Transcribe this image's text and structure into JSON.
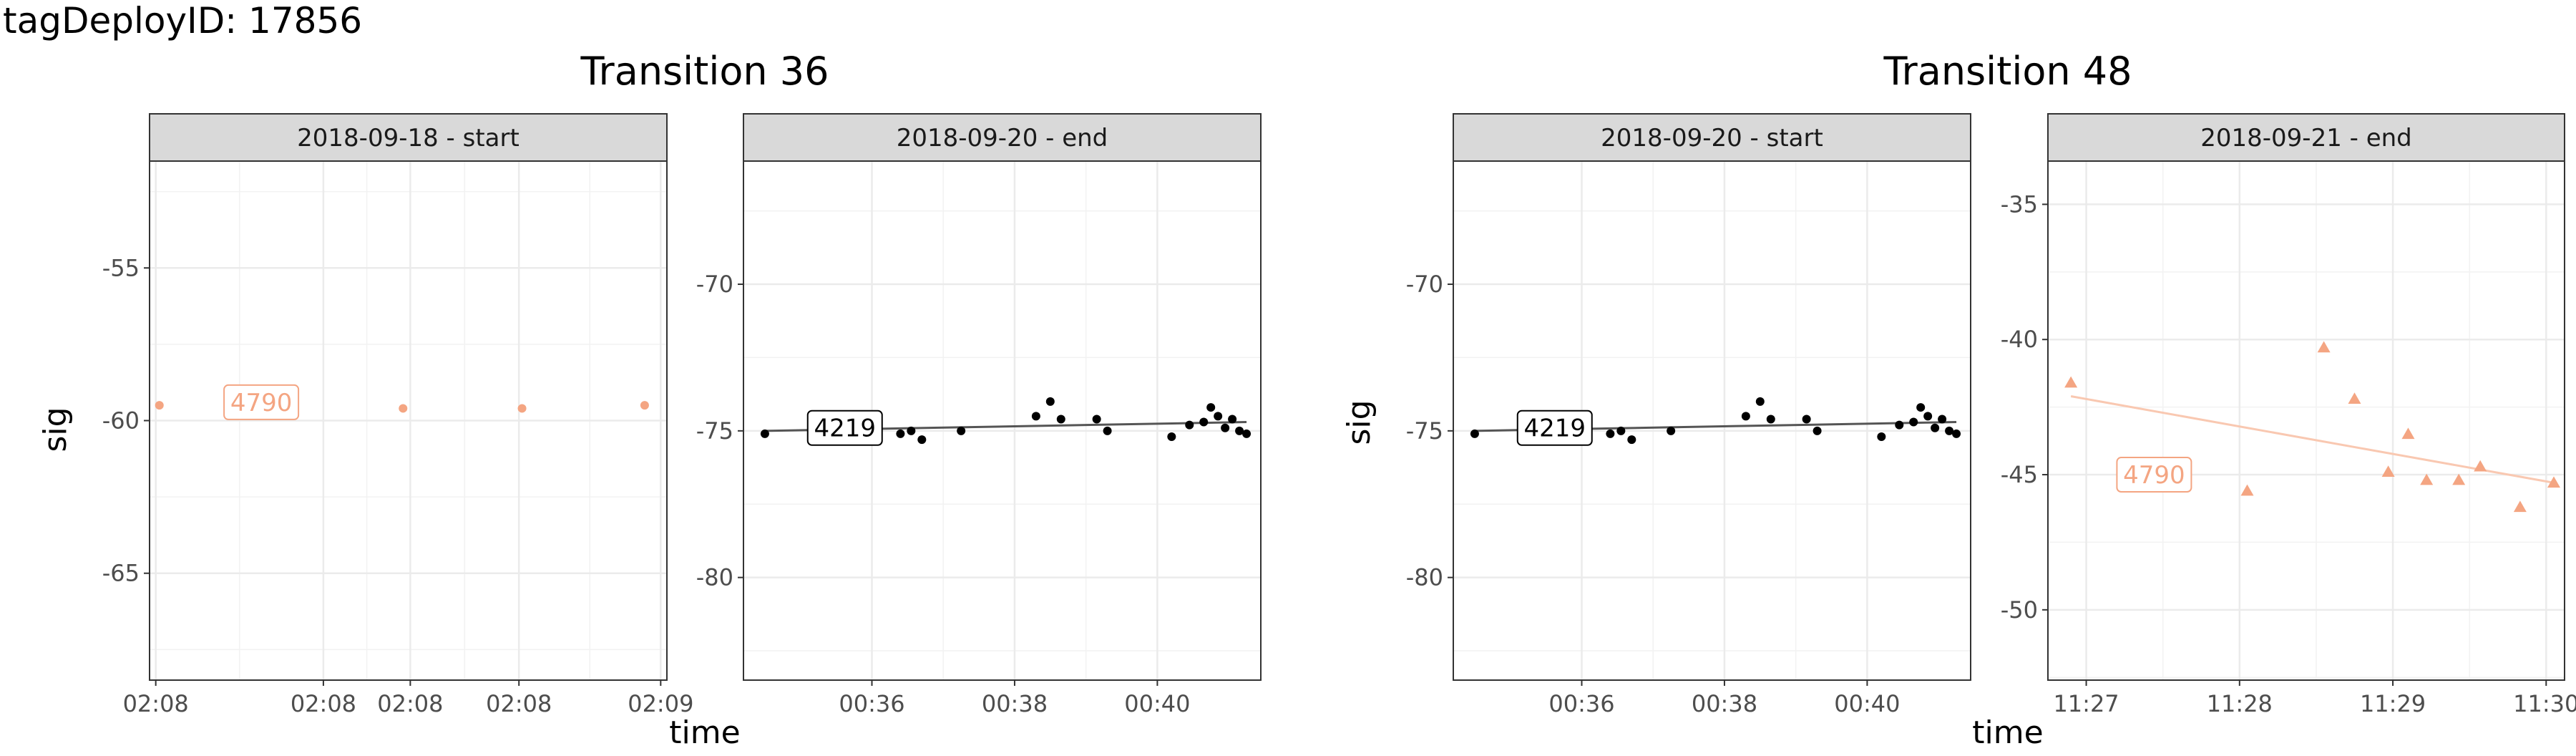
{
  "page_title": "tagDeployID: 17856",
  "transitions": [
    {
      "title": "Transition 36"
    },
    {
      "title": "Transition 48"
    }
  ],
  "colors": {
    "orange": "#F4A582",
    "black": "#000000",
    "orange_line": "#F9C8B1",
    "grid": "#EBEBEB",
    "strip_bg": "#D9D9D9",
    "border": "#333333"
  },
  "chart_data": [
    {
      "type": "scatter",
      "title": "2018-09-18 - start",
      "xlabel": "",
      "ylabel": "sig",
      "marker": "circle",
      "color": "#F4A582",
      "ylim": [
        -68.5,
        -51.5
      ],
      "yticks": [
        -55,
        -60,
        -65
      ],
      "xticks": [
        "02:08",
        "02:08",
        "02:08",
        "02:08",
        "02:09"
      ],
      "xlim": [
        0,
        100
      ],
      "xtick_pos": [
        1.2,
        33.6,
        50.4,
        71.4,
        98.8
      ],
      "grid": true,
      "x": [
        1.9,
        24.7,
        49.0,
        72.0,
        95.7
      ],
      "y": [
        -59.5,
        -59.8,
        -59.6,
        -59.6,
        -59.5
      ],
      "label": {
        "text": "4790",
        "x": 14.4,
        "y": -59.4
      },
      "fit": null
    },
    {
      "type": "scatter",
      "title": "2018-09-20 - end",
      "xlabel": "",
      "ylabel": "",
      "marker": "circle",
      "color": "#000000",
      "ylim": [
        -83.5,
        -65.8
      ],
      "yticks": [
        -70,
        -75,
        -80
      ],
      "xticks": [
        "00:36",
        "00:38",
        "00:40"
      ],
      "xlim": [
        34.2,
        41.45
      ],
      "xtick_pos": [
        36,
        38,
        40
      ],
      "grid": true,
      "x": [
        34.5,
        36.4,
        36.55,
        36.7,
        37.25,
        38.3,
        38.5,
        38.65,
        39.15,
        39.3,
        40.2,
        40.45,
        40.65,
        40.75,
        40.85,
        40.95,
        41.05,
        41.15,
        41.25
      ],
      "y": [
        -75.1,
        -75.1,
        -75.0,
        -75.3,
        -75.0,
        -74.5,
        -74.0,
        -74.6,
        -74.6,
        -75.0,
        -75.2,
        -74.8,
        -74.7,
        -74.2,
        -74.5,
        -74.9,
        -74.6,
        -75.0,
        -75.1
      ],
      "label": {
        "text": "4219",
        "x": 35.1,
        "y": -74.9
      },
      "fit": {
        "x0": 34.5,
        "y0": -75.0,
        "x1": 41.25,
        "y1": -74.7
      }
    },
    {
      "type": "scatter",
      "title": "2018-09-20 - start",
      "xlabel": "",
      "ylabel": "sig",
      "marker": "circle",
      "color": "#000000",
      "ylim": [
        -83.5,
        -65.8
      ],
      "yticks": [
        -70,
        -75,
        -80
      ],
      "xticks": [
        "00:36",
        "00:38",
        "00:40"
      ],
      "xlim": [
        34.2,
        41.45
      ],
      "xtick_pos": [
        36,
        38,
        40
      ],
      "grid": true,
      "x": [
        34.5,
        36.4,
        36.55,
        36.7,
        37.25,
        38.3,
        38.5,
        38.65,
        39.15,
        39.3,
        40.2,
        40.45,
        40.65,
        40.75,
        40.85,
        40.95,
        41.05,
        41.15,
        41.25
      ],
      "y": [
        -75.1,
        -75.1,
        -75.0,
        -75.3,
        -75.0,
        -74.5,
        -74.0,
        -74.6,
        -74.6,
        -75.0,
        -75.2,
        -74.8,
        -74.7,
        -74.2,
        -74.5,
        -74.9,
        -74.6,
        -75.0,
        -75.1
      ],
      "label": {
        "text": "4219",
        "x": 35.1,
        "y": -74.9
      },
      "fit": {
        "x0": 34.5,
        "y0": -75.0,
        "x1": 41.25,
        "y1": -74.7
      }
    },
    {
      "type": "scatter",
      "title": "2018-09-21 - end",
      "xlabel": "",
      "ylabel": "",
      "marker": "triangle",
      "color": "#F4A582",
      "ylim": [
        -52.6,
        -33.4
      ],
      "yticks": [
        -35,
        -40,
        -45,
        -50
      ],
      "xticks": [
        "11:27",
        "11:28",
        "11:29",
        "11:30"
      ],
      "xlim": [
        26.75,
        30.12
      ],
      "xtick_pos": [
        27,
        28,
        29,
        30
      ],
      "grid": true,
      "x": [
        26.9,
        28.05,
        28.55,
        28.75,
        28.97,
        29.1,
        29.22,
        29.43,
        29.57,
        29.83,
        30.05
      ],
      "y": [
        -41.6,
        -45.6,
        -40.3,
        -42.2,
        -44.9,
        -43.5,
        -45.2,
        -45.2,
        -44.7,
        -46.2,
        -45.3
      ],
      "label": {
        "text": "4790",
        "x": 27.2,
        "y": -45.0
      },
      "fit": {
        "x0": 26.9,
        "y0": -42.1,
        "x1": 30.05,
        "y1": -45.3
      }
    }
  ],
  "axis": {
    "x_title": "time"
  }
}
